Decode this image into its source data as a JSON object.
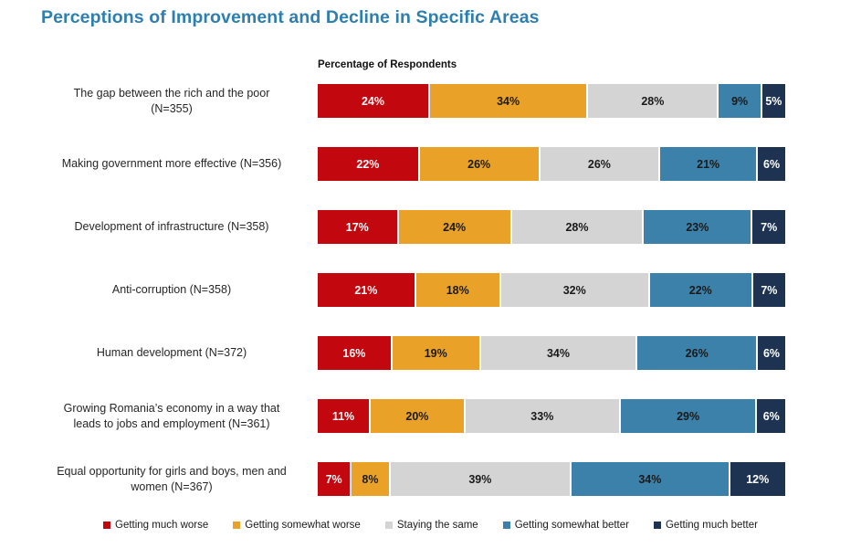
{
  "title": "Perceptions of Improvement and Decline in Specific Areas",
  "colors": {
    "title_text": "#2E7FB0",
    "label_text": "#262626",
    "value_text_dark": "#1A1A1A",
    "value_text_light": "#FFFFFF"
  },
  "chart_data": {
    "type": "bar",
    "orientation": "horizontal",
    "stacked": true,
    "title": "Perceptions of Improvement and Decline in Specific Areas",
    "axis_label": "Percentage of Respondents",
    "unit": "%",
    "xlim": [
      0,
      100
    ],
    "grid": false,
    "legend_position": "bottom",
    "series_names": [
      "Getting much worse",
      "Getting somewhat worse",
      "Staying the same",
      "Getting somewhat better",
      "Getting much better"
    ],
    "series_colors": [
      "#C3070F",
      "#E9A227",
      "#D4D4D4",
      "#3C81A9",
      "#1E3352"
    ],
    "series_label_colors": [
      "#FFFFFF",
      "#1A1A1A",
      "#1A1A1A",
      "#1A1A1A",
      "#FFFFFF"
    ],
    "categories": [
      {
        "label_lines": [
          "The gap between the rich and the poor",
          "(N=355)"
        ],
        "label": "The gap between the rich and the poor (N=355)",
        "values": [
          24,
          34,
          28,
          9,
          5
        ]
      },
      {
        "label_lines": [
          "Making government more effective (N=356)"
        ],
        "label": "Making government more effective (N=356)",
        "values": [
          22,
          26,
          26,
          21,
          6
        ]
      },
      {
        "label_lines": [
          "Development of infrastructure (N=358)"
        ],
        "label": "Development of infrastructure (N=358)",
        "values": [
          17,
          24,
          28,
          23,
          7
        ]
      },
      {
        "label_lines": [
          "Anti-corruption (N=358)"
        ],
        "label": "Anti-corruption (N=358)",
        "values": [
          21,
          18,
          32,
          22,
          7
        ]
      },
      {
        "label_lines": [
          "Human development (N=372)"
        ],
        "label": "Human development (N=372)",
        "values": [
          16,
          19,
          34,
          26,
          6
        ]
      },
      {
        "label_lines": [
          "Growing Romania’s economy in a way that",
          "leads to jobs and employment (N=361)"
        ],
        "label": "Growing Romania’s economy in a way that leads to jobs and employment (N=361)",
        "values": [
          11,
          20,
          33,
          29,
          6
        ]
      },
      {
        "label_lines": [
          "Equal opportunity for girls and boys, men and",
          "women (N=367)"
        ],
        "label": "Equal opportunity for girls and boys, men and women (N=367)",
        "values": [
          7,
          8,
          39,
          34,
          12
        ]
      }
    ]
  }
}
